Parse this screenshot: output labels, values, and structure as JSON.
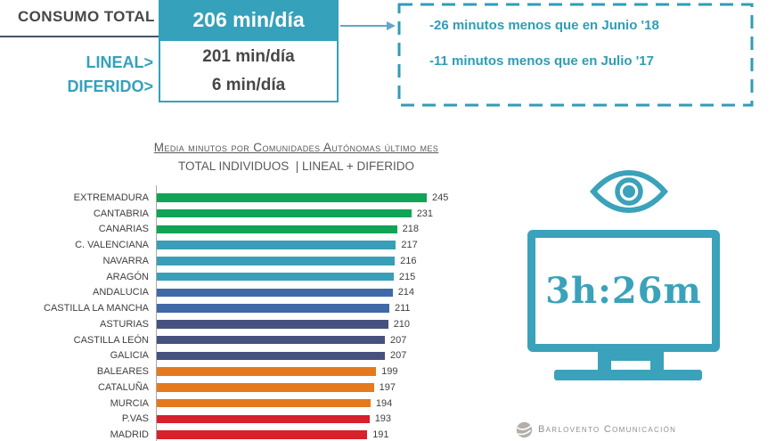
{
  "summary": {
    "title": "CONSUMO TOTAL",
    "total_value": "206 min/día",
    "lineal_label": "LINEAL>",
    "lineal_value": "201 min/día",
    "diferido_label": "DIFERIDO>",
    "diferido_value": "6 min/día"
  },
  "comparison_box": {
    "line1": "-26 minutos menos que en Junio '18",
    "line2": "-11 minutos menos que en Julio '17"
  },
  "chart_data": {
    "type": "bar",
    "orientation": "horizontal",
    "title": "Media minutos por Comunidades Autónomas último mes",
    "subtitle": "TOTAL INDIVIDUOS  | LINEAL + DIFERIDO",
    "xlabel": "",
    "ylabel": "",
    "xlim": [
      0,
      245
    ],
    "grid": false,
    "legend": false,
    "value_labels_shown": true,
    "categories": [
      "EXTREMADURA",
      "CANTABRIA",
      "CANARIAS",
      "C. VALENCIANA",
      "NAVARRA",
      "ARAGÓN",
      "ANDALUCIA",
      "CASTILLA LA MANCHA",
      "ASTURIAS",
      "CASTILLA LEÓN",
      "GALICIA",
      "BALEARES",
      "CATALUÑA",
      "MURCIA",
      "P.VAS",
      "MADRID"
    ],
    "values": [
      245,
      231,
      218,
      217,
      216,
      215,
      214,
      211,
      210,
      207,
      207,
      199,
      197,
      194,
      193,
      191
    ],
    "bar_colors": [
      "#10A456",
      "#10A456",
      "#10A456",
      "#399FB6",
      "#399FB6",
      "#399FB6",
      "#4169A8",
      "#4169A8",
      "#475180",
      "#475180",
      "#475180",
      "#E5791D",
      "#E5791D",
      "#E5791D",
      "#D7212B",
      "#D7212B"
    ]
  },
  "tv_panel": {
    "screen_time": "3h:26m"
  },
  "footer": {
    "brand": "Barlovento Comunicación"
  },
  "icons": {
    "comparison_arrow": "arrow-right-icon",
    "viewer": "eye-icon",
    "screen": "tv-icon",
    "brand": "globe-icon"
  },
  "colors": {
    "accent_teal": "#35A1BB",
    "teal_text": "#2F9DB6",
    "tv_eye_teal": "#3AA2BA",
    "dark_text": "#474747",
    "chart_text": "#3F3F3F",
    "title_gray": "#595959",
    "underline_navy": "#44546A",
    "axis_gray": "#A9A9A9",
    "footer_gray": "#8F8F8F"
  }
}
